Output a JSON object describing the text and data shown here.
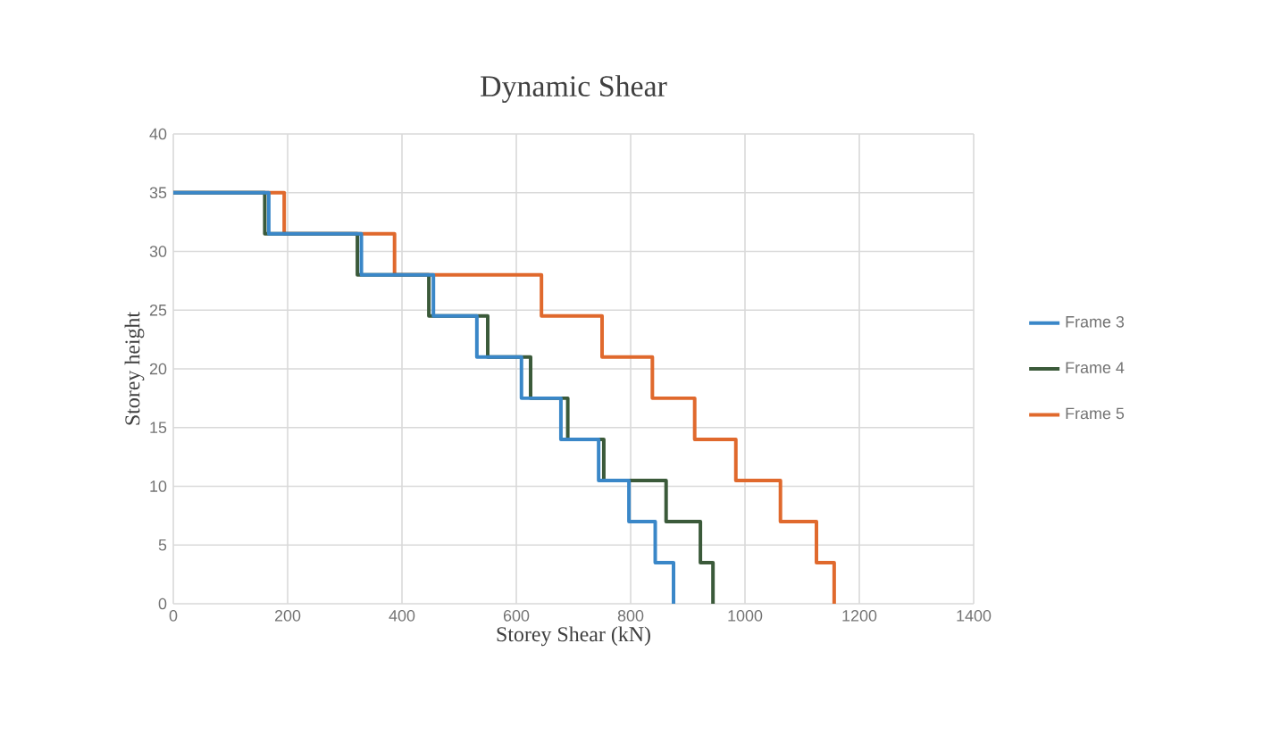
{
  "chart_data": {
    "type": "line",
    "title": "Dynamic  Shear",
    "xlabel": "Storey Shear (kN)",
    "ylabel": "Storey height",
    "xlim": [
      0,
      1400
    ],
    "xticks": [
      0,
      200,
      400,
      600,
      800,
      1000,
      1200,
      1400
    ],
    "ylim": [
      0,
      40
    ],
    "yticks": [
      0,
      5,
      10,
      15,
      20,
      25,
      30,
      35,
      40
    ],
    "grid": true,
    "legend": "right",
    "marker": "none",
    "line_style": "solid",
    "series": [
      {
        "name": "Frame 3",
        "color": "#3a87c8",
        "x": [
          0,
          167,
          167,
          329,
          329,
          455,
          455,
          531,
          531,
          609,
          609,
          678,
          678,
          744,
          744,
          797,
          797,
          843,
          843,
          875,
          875
        ],
        "values": [
          35,
          35,
          31.5,
          31.5,
          28,
          28,
          24.5,
          24.5,
          21,
          21,
          17.5,
          17.5,
          14,
          14,
          10.5,
          10.5,
          7,
          7,
          3.5,
          3.5,
          0
        ]
      },
      {
        "name": "Frame 4",
        "color": "#3b5a3a",
        "x": [
          0,
          160,
          160,
          322,
          322,
          447,
          447,
          550,
          550,
          625,
          625,
          690,
          690,
          753,
          753,
          862,
          862,
          922,
          922,
          944,
          944
        ],
        "values": [
          35,
          35,
          31.5,
          31.5,
          28,
          28,
          24.5,
          24.5,
          21,
          21,
          17.5,
          17.5,
          14,
          14,
          10.5,
          10.5,
          7,
          7,
          3.5,
          3.5,
          0
        ]
      },
      {
        "name": "Frame 5",
        "color": "#e0692d",
        "x": [
          0,
          194,
          194,
          387,
          387,
          644,
          644,
          750,
          750,
          838,
          838,
          912,
          912,
          984,
          984,
          1062,
          1062,
          1125,
          1125,
          1156,
          1156
        ],
        "values": [
          35,
          35,
          31.5,
          31.5,
          28,
          28,
          24.5,
          24.5,
          21,
          21,
          17.5,
          17.5,
          14,
          14,
          10.5,
          10.5,
          7,
          7,
          3.5,
          3.5,
          0
        ]
      }
    ]
  }
}
